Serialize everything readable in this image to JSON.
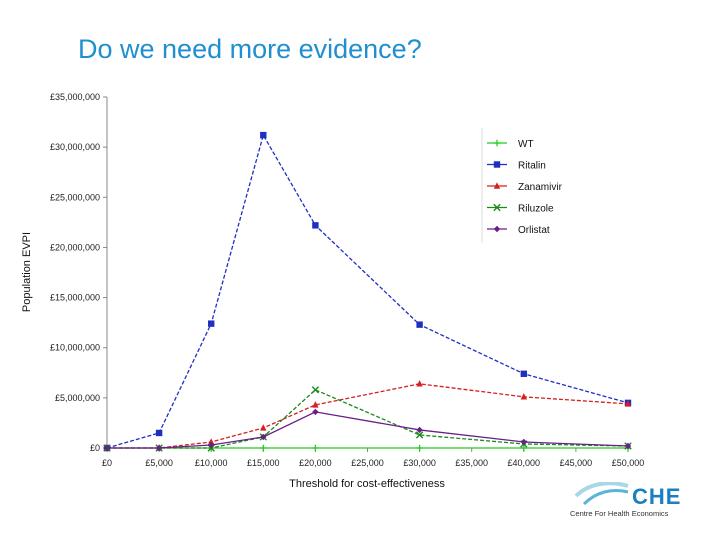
{
  "slide": {
    "title": "Do we need more evidence?"
  },
  "logo": {
    "name": "CHE",
    "subtitle": "Centre For Health Economics"
  },
  "chart_data": {
    "type": "line",
    "title": "",
    "xlabel": "Threshold for cost-effectiveness",
    "ylabel": "Population EVPI",
    "x_ticks": [
      0,
      5000,
      10000,
      15000,
      20000,
      25000,
      30000,
      35000,
      40000,
      45000,
      50000
    ],
    "x_tick_labels": [
      "£0",
      "£5,000",
      "£10,000",
      "£15,000",
      "£20,000",
      "£25,000",
      "£30,000",
      "£35,000",
      "£40,000",
      "£45,000",
      "£50,000"
    ],
    "y_ticks": [
      0,
      5000000,
      10000000,
      15000000,
      20000000,
      25000000,
      30000000,
      35000000
    ],
    "y_tick_labels": [
      "£0",
      "£5,000,000",
      "£10,000,000",
      "£15,000,000",
      "£20,000,000",
      "£25,000,000",
      "£30,000,000",
      "£35,000,000"
    ],
    "xlim": [
      0,
      50000
    ],
    "ylim": [
      0,
      35000000
    ],
    "x": [
      0,
      5000,
      10000,
      15000,
      20000,
      30000,
      40000,
      50000
    ],
    "legend_position": "top-right",
    "series": [
      {
        "name": "WT",
        "color": "#22cc22",
        "marker": "plus",
        "dashed": false,
        "values": [
          0,
          0,
          0,
          0,
          0,
          0,
          0,
          0
        ]
      },
      {
        "name": "Ritalin",
        "color": "#1f2fbf",
        "marker": "square",
        "dashed": true,
        "values": [
          0,
          1500000,
          12400000,
          31200000,
          22200000,
          12300000,
          7400000,
          4500000
        ]
      },
      {
        "name": "Zanamivir",
        "color": "#d42020",
        "marker": "triangle",
        "dashed": true,
        "values": [
          0,
          0,
          600000,
          2000000,
          4300000,
          6400000,
          5100000,
          4400000
        ]
      },
      {
        "name": "Riluzole",
        "color": "#1a8a1a",
        "marker": "x",
        "dashed": true,
        "values": [
          0,
          0,
          0,
          1100000,
          5800000,
          1300000,
          400000,
          200000
        ]
      },
      {
        "name": "Orlistat",
        "color": "#6a1e8a",
        "marker": "diamond",
        "dashed": false,
        "values": [
          0,
          0,
          300000,
          1100000,
          3600000,
          1800000,
          600000,
          200000
        ]
      }
    ]
  }
}
